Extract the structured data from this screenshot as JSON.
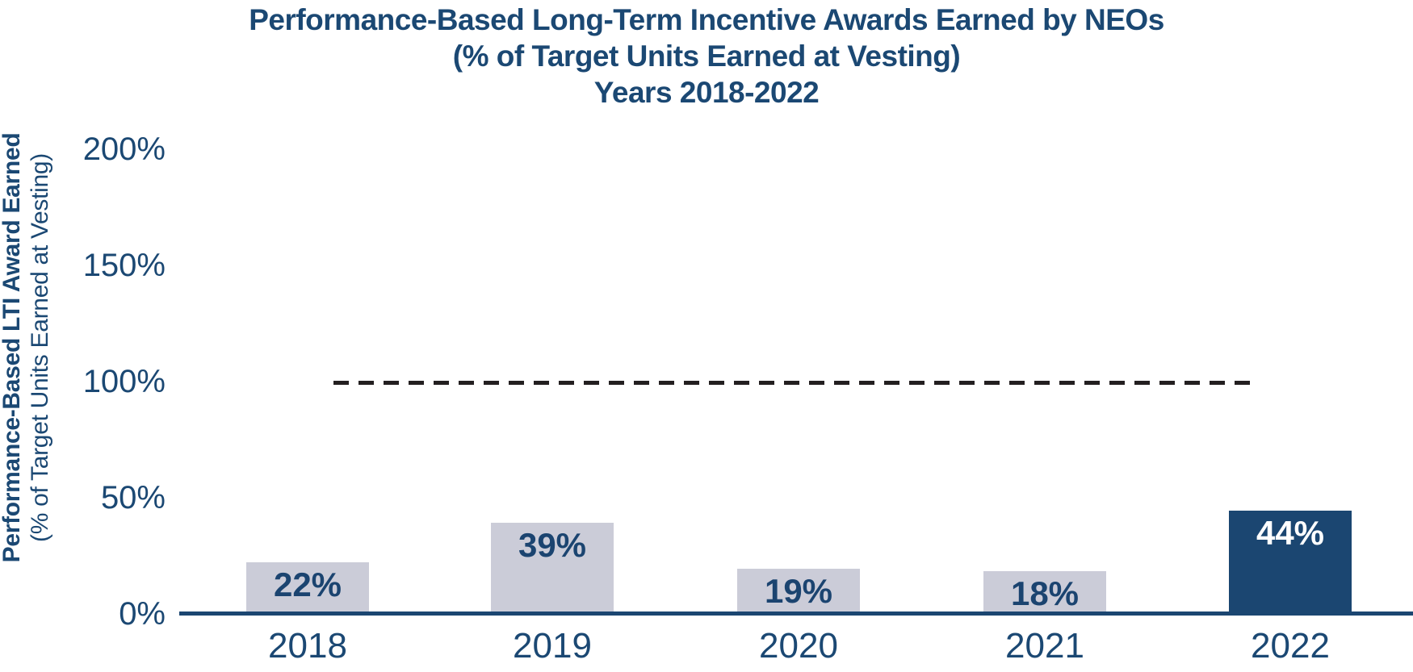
{
  "title": {
    "line1": "Performance-Based Long-Term Incentive Awards Earned by NEOs",
    "line2": "(% of Target Units Earned at Vesting)",
    "line3": "Years 2018-2022"
  },
  "y_axis": {
    "label_line1": "Performance-Based LTI Award Earned",
    "label_line2": "(% of Target Units Earned at Vesting)"
  },
  "chart_data": {
    "type": "bar",
    "title": "Performance-Based Long-Term Incentive Awards Earned by NEOs (% of Target Units Earned at Vesting) Years 2018-2022",
    "categories": [
      "2018",
      "2019",
      "2020",
      "2021",
      "2022"
    ],
    "values": [
      22,
      39,
      19,
      18,
      44
    ],
    "bar_labels": [
      "22%",
      "39%",
      "19%",
      "18%",
      "44%"
    ],
    "ylabel": "Performance-Based LTI Award Earned (% of Target Units Earned at Vesting)",
    "ylim": [
      0,
      200
    ],
    "y_ticks": [
      {
        "label": "200%",
        "value": 200
      },
      {
        "label": "150%",
        "value": 150
      },
      {
        "label": "100%",
        "value": 100
      },
      {
        "label": "50%",
        "value": 50
      },
      {
        "label": "0%",
        "value": 0
      }
    ],
    "grid": false,
    "legend": false,
    "reference_line": {
      "value": 100,
      "style": "dashed",
      "color": "#231f20"
    },
    "highlight_index": 4,
    "colors": {
      "bar_default": "#cbccd8",
      "bar_highlight": "#1b4671",
      "navy_text": "#1b4873",
      "axis_line": "#1b4671",
      "reference_line": "#231f20",
      "label_on_default": "#1b4470",
      "label_on_highlight": "#ffffff"
    }
  }
}
